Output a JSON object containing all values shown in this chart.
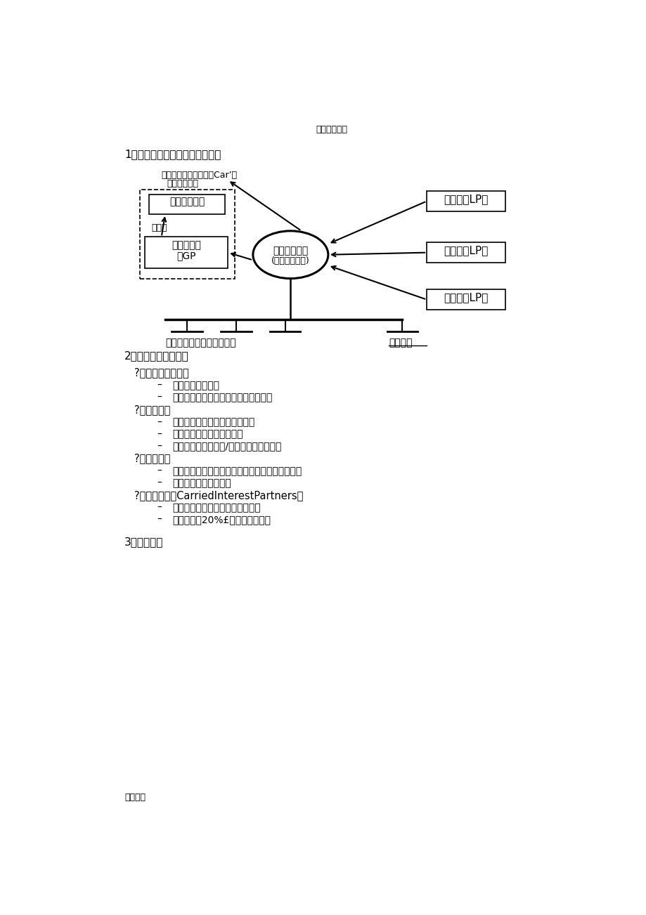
{
  "header_text": "实用标准文案",
  "footer_text": "精彩文档",
  "section1_title": "1、有限合伙私募股权基金的结构",
  "section2_title": "2、有限合伙基金结构",
  "section3_title": "3、创立步骤",
  "bg_color": "#ffffff",
  "diagram": {
    "carried_line1": "创始合伙人管理分红（Car’）",
    "carried_line2": "（基金高管）",
    "fund_mgmt": "基金管理公司",
    "gp_line1": "普通合伙人",
    "gp_line2": "（GP",
    "center_line1": "私募股权基金",
    "center_line2": "(有限合伙企业)",
    "investor1": "投资者（LP）",
    "investor2": "投资者（LP）",
    "investor3": "投资者（LP）",
    "mgmt_fee": "管理费",
    "invest_left": "投资项目投资项目投资项目",
    "invest_right": "投资项目"
  },
  "section2_content": [
    {
      "type": "heading",
      "text": "?有限合伙制的采用"
    },
    {
      "type": "bullet",
      "text": "有利因素：免税；"
    },
    {
      "type": "bullet",
      "text": "不利因素：人数限制，无限连带责任。"
    },
    {
      "type": "heading",
      "text": "?普通合伙人"
    },
    {
      "type": "bullet",
      "text": "通常以有限责任公司形式存在；"
    },
    {
      "type": "bullet",
      "text": "负责公司的日常运作事宜；"
    },
    {
      "type": "bullet",
      "text": "通常会委托一家管理/顾问公司运作基金。"
    },
    {
      "type": "heading",
      "text": "?有限合伙人"
    },
    {
      "type": "bullet",
      "text": "提供了基金的主要资金（英国模式：合伙人贷款）"
    },
    {
      "type": "bullet",
      "text": "以出资为限承担责任。"
    },
    {
      "type": "heading",
      "text": "?创始合伙人（CarriedInterestPartners）"
    },
    {
      "type": "bullet",
      "text": "对基金拥有个人份额的基金经理；"
    },
    {
      "type": "bullet",
      "text": "通常会获刷20%£右的管理分红。"
    }
  ]
}
